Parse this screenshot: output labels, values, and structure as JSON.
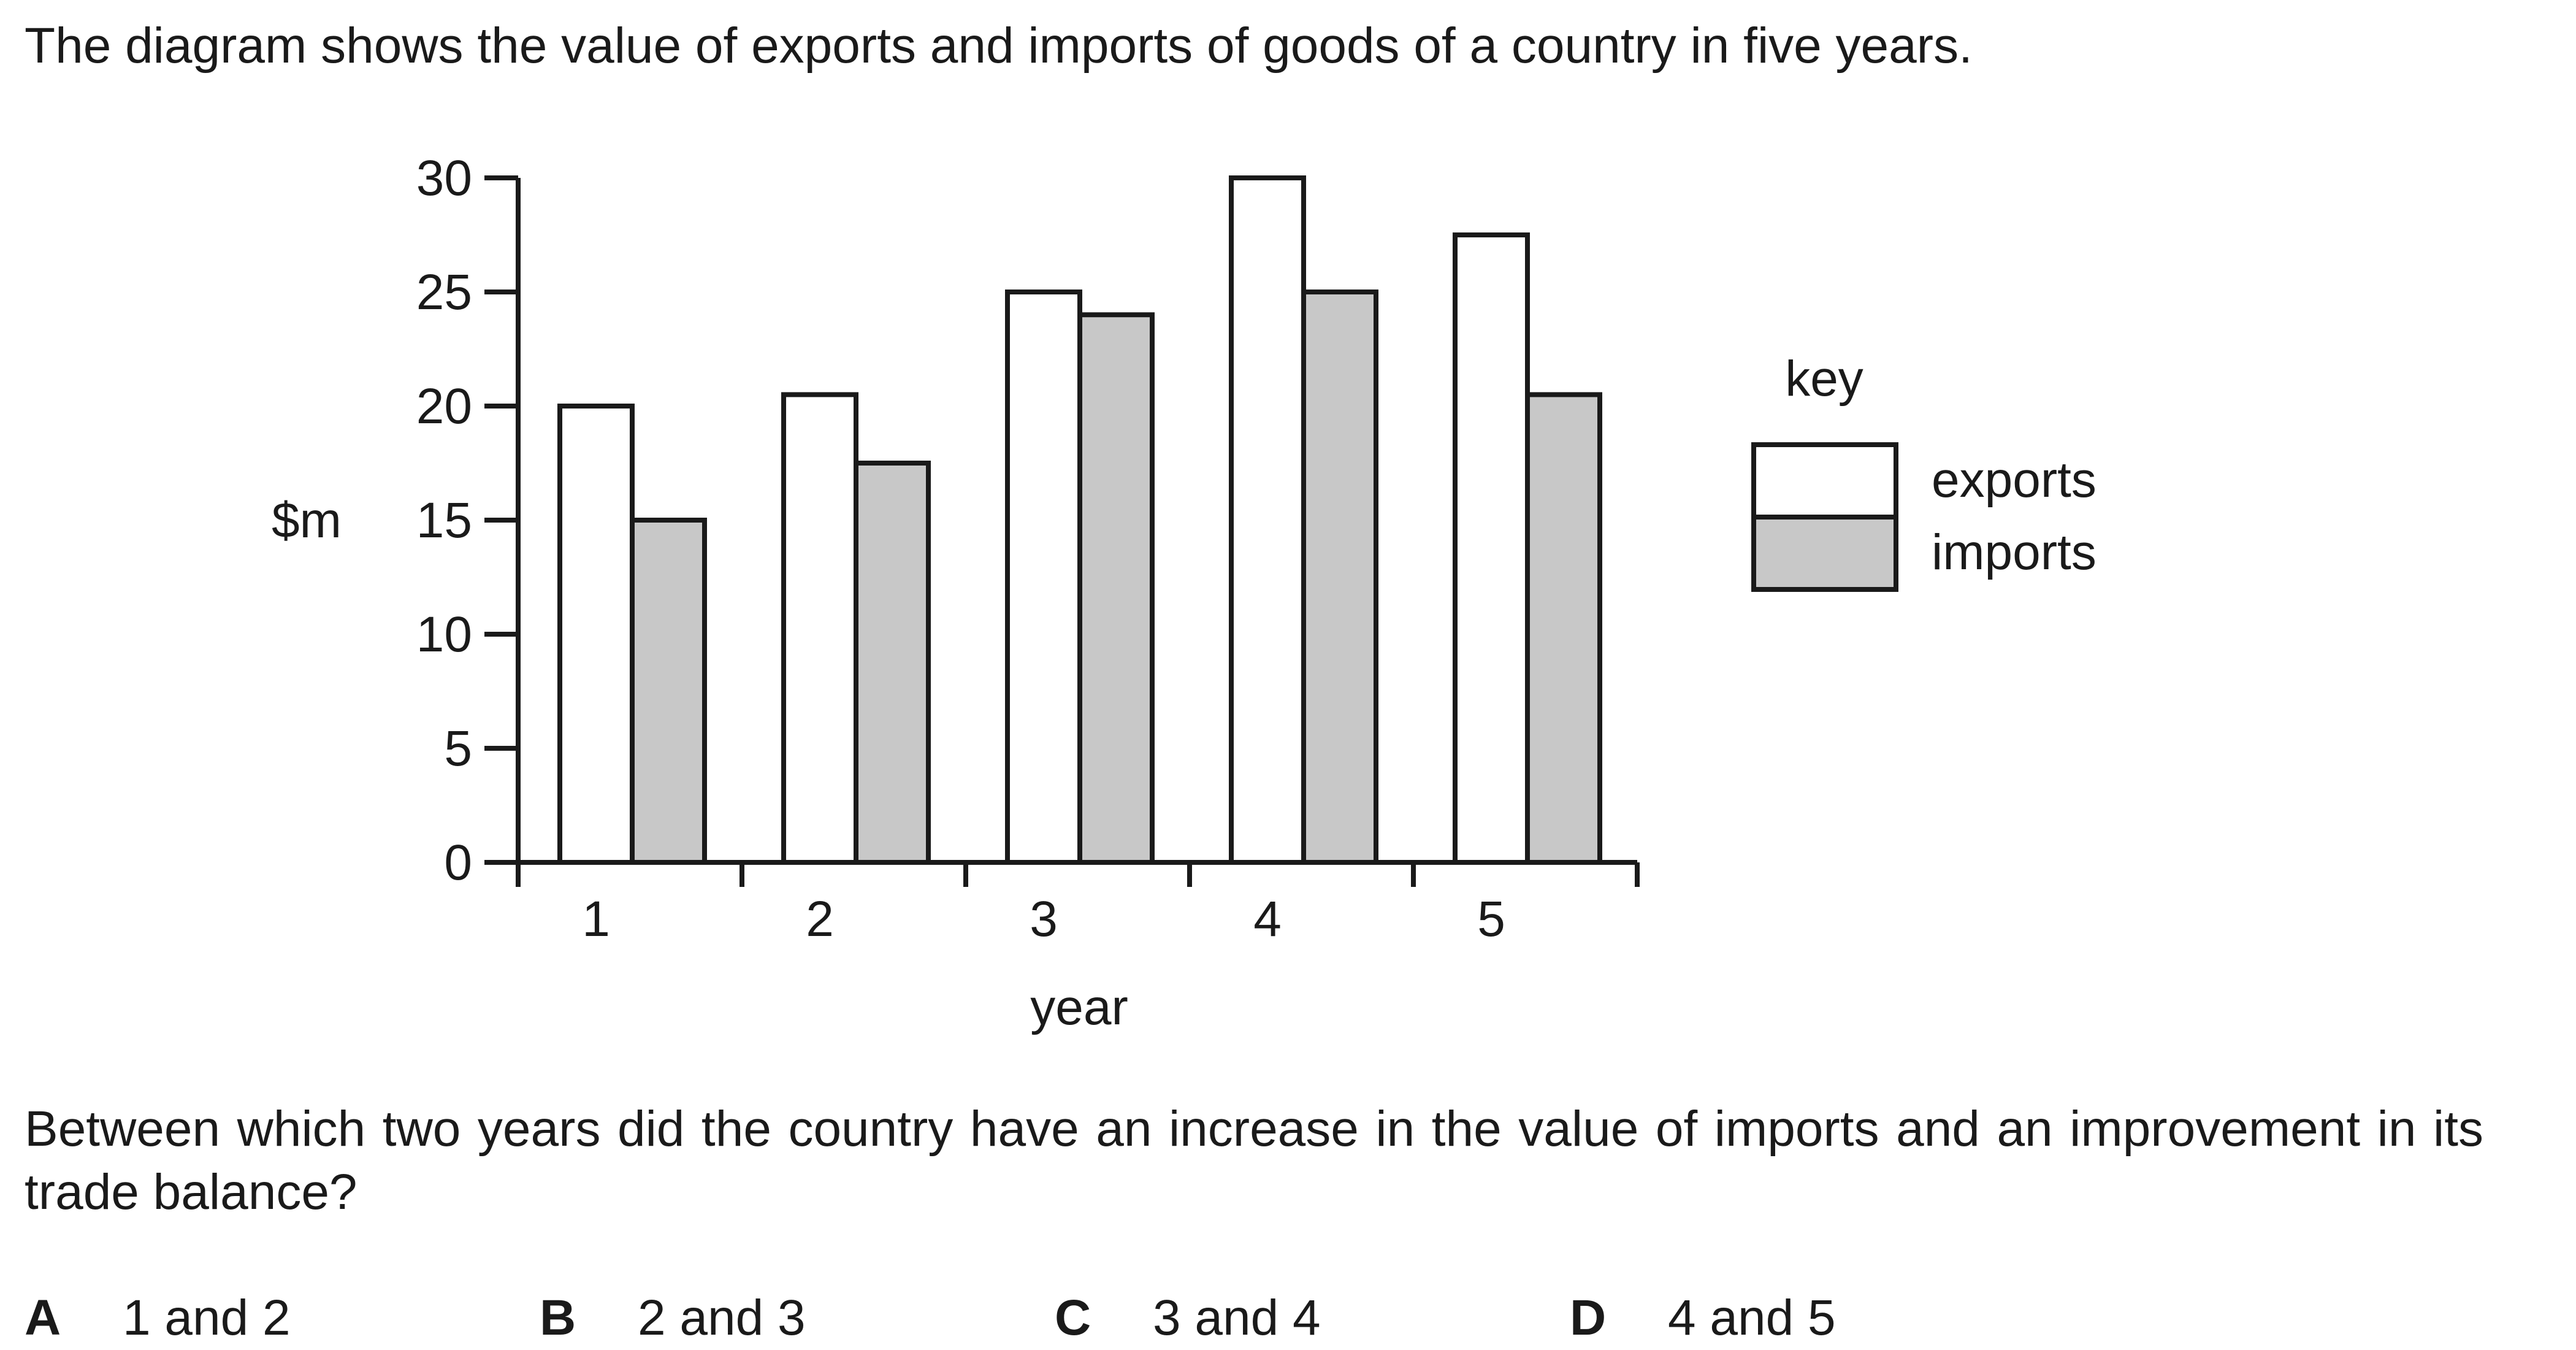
{
  "intro_text": "The diagram shows the value of exports and imports of goods of a country in five years.",
  "chart_data": {
    "type": "bar",
    "categories": [
      "1",
      "2",
      "3",
      "4",
      "5"
    ],
    "series": [
      {
        "name": "exports",
        "values": [
          20,
          20.5,
          25,
          30,
          27.5
        ],
        "color": "#ffffff"
      },
      {
        "name": "imports",
        "values": [
          15,
          17.5,
          24,
          25,
          20.5
        ],
        "color": "#c8c8c8"
      }
    ],
    "ylabel": "$m",
    "xlabel": "year",
    "ylim": [
      0,
      30
    ],
    "yticks": [
      0,
      5,
      10,
      15,
      20,
      25,
      30
    ],
    "legend_title": "key",
    "legend_position": "right",
    "grid": false
  },
  "question_text": "Between which two years did the country have an increase in the value of imports and an improvement in its trade balance?",
  "options": [
    {
      "letter": "A",
      "text": "1 and 2"
    },
    {
      "letter": "B",
      "text": "2 and 3"
    },
    {
      "letter": "C",
      "text": "3 and 4"
    },
    {
      "letter": "D",
      "text": "4 and 5"
    }
  ]
}
